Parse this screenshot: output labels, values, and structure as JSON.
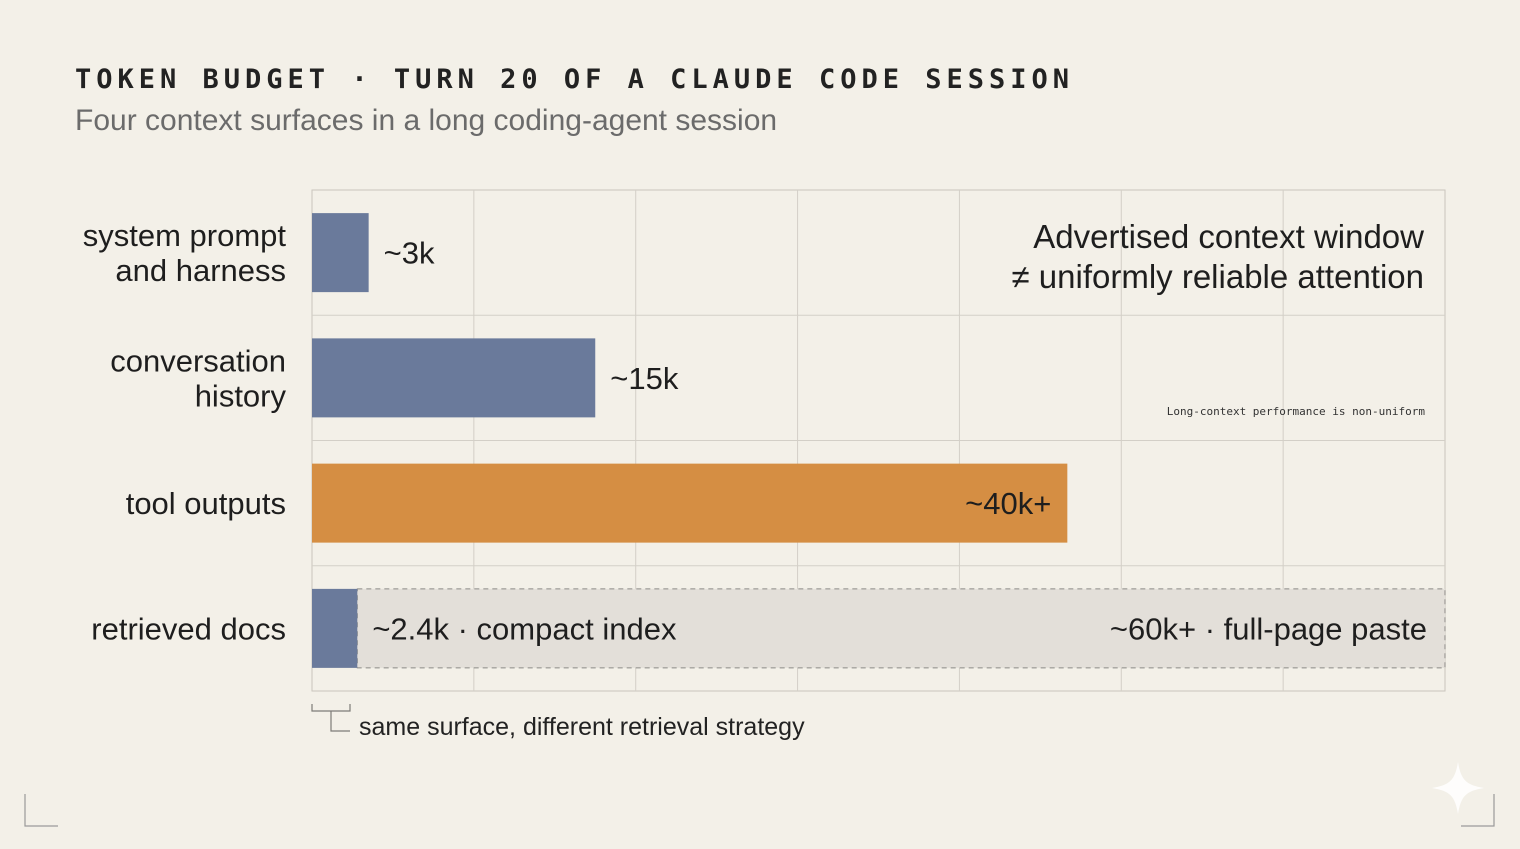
{
  "header": {
    "title": "TOKEN BUDGET · TURN 20 OF A CLAUDE CODE SESSION",
    "subtitle": "Four context surfaces in a long coding-agent session"
  },
  "chart_data": {
    "type": "bar",
    "orientation": "horizontal",
    "categories": [
      [
        "system prompt",
        "and harness"
      ],
      [
        "conversation",
        "history"
      ],
      [
        "tool outputs"
      ],
      [
        "retrieved docs"
      ]
    ],
    "values": [
      3,
      15,
      40,
      2.4
    ],
    "value_labels": [
      "~3k",
      "~15k",
      "~40k+",
      "~2.4k · compact index"
    ],
    "bar_colors": [
      "#6a7a9b",
      "#6a7a9b",
      "#d58e43",
      "#6a7a9b"
    ],
    "range_bar": {
      "category_index": 3,
      "from": 2.4,
      "to": 60,
      "label": "~60k+ · full-page paste",
      "color": "#e3dfd9"
    },
    "xlim": [
      0,
      60
    ],
    "grid": true,
    "annotations": {
      "headline": [
        "Advertised context window",
        "≠ uniformly reliable attention"
      ],
      "small": "Long-context performance is non-uniform"
    },
    "footnote": "same surface, different retrieval strategy",
    "xlabel": "",
    "ylabel": ""
  }
}
